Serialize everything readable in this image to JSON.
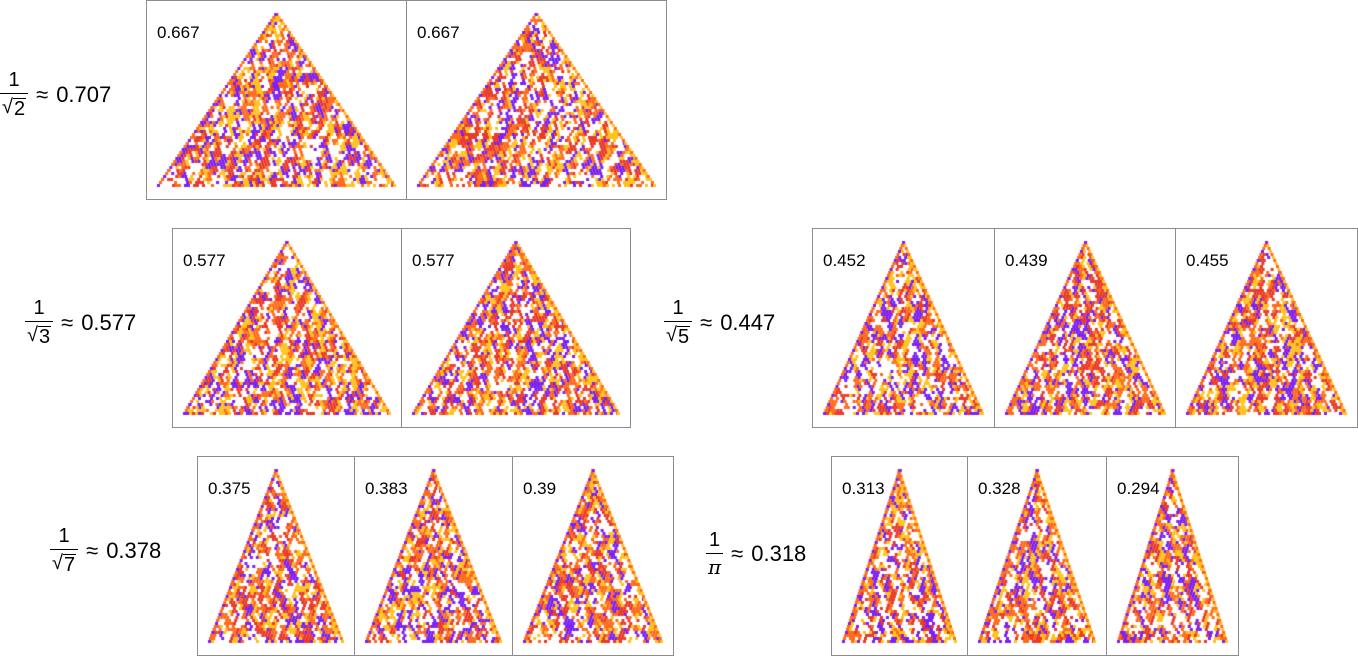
{
  "colors": {
    "purple": "#7a1ff5",
    "orange": "#ff6a1a",
    "yellow": "#ffc21a",
    "red": "#e8392a",
    "white": "#ffffff",
    "frame": "#8c8c8c"
  },
  "groups": [
    {
      "numerator": "1",
      "radicand": "2",
      "approx": "≈",
      "value": "0.707",
      "panels": [
        {
          "value": "0.667"
        },
        {
          "value": "0.667"
        }
      ]
    },
    {
      "numerator": "1",
      "radicand": "3",
      "approx": "≈",
      "value": "0.577",
      "panels": [
        {
          "value": "0.577"
        },
        {
          "value": "0.577"
        }
      ]
    },
    {
      "numerator": "1",
      "radicand": "5",
      "approx": "≈",
      "value": "0.447",
      "panels": [
        {
          "value": "0.452"
        },
        {
          "value": "0.439"
        },
        {
          "value": "0.455"
        }
      ]
    },
    {
      "numerator": "1",
      "radicand": "7",
      "approx": "≈",
      "value": "0.378",
      "panels": [
        {
          "value": "0.375"
        },
        {
          "value": "0.383"
        },
        {
          "value": "0.39"
        }
      ]
    },
    {
      "numerator": "1",
      "denominator": "π",
      "approx": "≈",
      "value": "0.318",
      "panels": [
        {
          "value": "0.313"
        },
        {
          "value": "0.328"
        },
        {
          "value": "0.294"
        }
      ]
    }
  ]
}
